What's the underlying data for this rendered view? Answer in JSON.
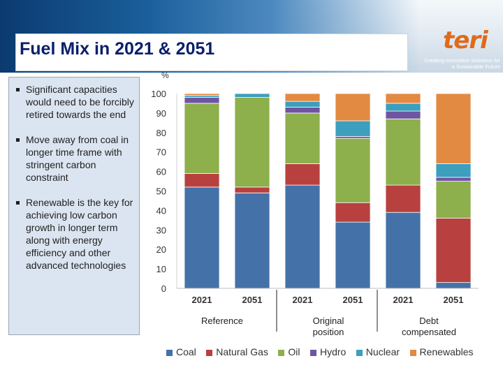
{
  "slide": {
    "title": "Fuel Mix in 2021 & 2051",
    "logo_text": "teri",
    "logo_tagline": "Creating Innovative Solutions for a Sustainable Future"
  },
  "bullets": [
    "Significant capacities would need to be forcibly retired towards the end",
    "Move away from coal in longer time frame with stringent carbon constraint",
    "Renewable is the key for achieving low carbon growth in longer term along with energy efficiency and other advanced technologies"
  ],
  "chart_data": {
    "type": "bar",
    "stacked": true,
    "y_unit_label": "%",
    "ylim": [
      0,
      100
    ],
    "yticks": [
      0,
      10,
      20,
      30,
      40,
      50,
      60,
      70,
      80,
      90,
      100
    ],
    "categories": [
      "2021",
      "2051",
      "2021",
      "2051",
      "2021",
      "2051"
    ],
    "groups": [
      {
        "label": "Reference",
        "categories": [
          0,
          1
        ]
      },
      {
        "label": "Original position",
        "categories": [
          2,
          3
        ]
      },
      {
        "label": "Debt compensated",
        "categories": [
          4,
          5
        ]
      }
    ],
    "series": [
      {
        "name": "Coal",
        "color": "#4472a8",
        "values": [
          52,
          49,
          53,
          34,
          39,
          3
        ]
      },
      {
        "name": "Natural Gas",
        "color": "#b8413f",
        "values": [
          7,
          3,
          11,
          10,
          14,
          33
        ]
      },
      {
        "name": "Oil",
        "color": "#8daf4c",
        "values": [
          36,
          46,
          26,
          33,
          34,
          19
        ]
      },
      {
        "name": "Hydro",
        "color": "#6f55a0",
        "values": [
          3,
          0,
          3,
          1,
          4,
          2
        ]
      },
      {
        "name": "Nuclear",
        "color": "#3d9ebd",
        "values": [
          1,
          2,
          3,
          8,
          4,
          7
        ]
      },
      {
        "name": "Renewables",
        "color": "#e28a42",
        "values": [
          1,
          0,
          4,
          14,
          5,
          36
        ]
      }
    ]
  }
}
